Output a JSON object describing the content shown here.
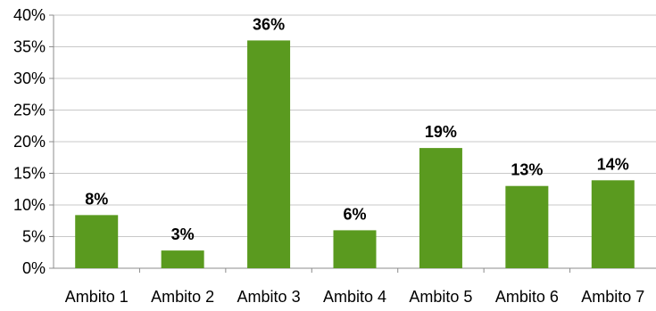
{
  "chart_data": {
    "type": "bar",
    "categories": [
      "Ambito 1",
      "Ambito 2",
      "Ambito 3",
      "Ambito 4",
      "Ambito 5",
      "Ambito 6",
      "Ambito 7"
    ],
    "values": [
      8.4,
      2.8,
      36.0,
      6.0,
      19.0,
      13.0,
      13.9
    ],
    "data_labels": [
      "8%",
      "3%",
      "36%",
      "6%",
      "19%",
      "13%",
      "14%"
    ],
    "y_ticks": [
      0,
      5,
      10,
      15,
      20,
      25,
      30,
      35,
      40
    ],
    "y_tick_labels": [
      "0%",
      "5%",
      "10%",
      "15%",
      "20%",
      "25%",
      "30%",
      "35%",
      "40%"
    ],
    "ylim": [
      0,
      40
    ],
    "grid": "horizontal",
    "legend": "none",
    "bar_color": "#5a9a1f",
    "grid_color": "#c8c8c8"
  }
}
